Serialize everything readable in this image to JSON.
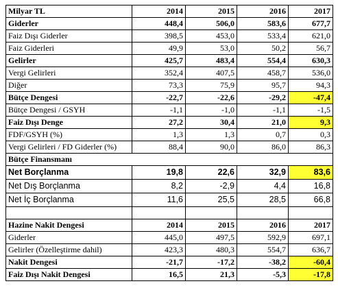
{
  "budget_table": {
    "header": [
      "Milyar TL",
      "2014",
      "2015",
      "2016",
      "2017"
    ],
    "rows": [
      [
        "Giderler",
        "448,4",
        "506,0",
        "583,6",
        "677,7"
      ],
      [
        "Faiz Dışı Giderler",
        "398,5",
        "453,0",
        "533,4",
        "621,0"
      ],
      [
        "Faiz Giderleri",
        "49,9",
        "53,0",
        "50,2",
        "56,7"
      ],
      [
        "Gelirler",
        "425,7",
        "483,4",
        "554,4",
        "630,3"
      ],
      [
        "Vergi Gelirleri",
        "352,4",
        "407,5",
        "458,7",
        "536,0"
      ],
      [
        "Diğer",
        "73,3",
        "75,9",
        "95,7",
        "94,3"
      ],
      [
        "Bütçe Dengesi",
        "-22,7",
        "-22,6",
        "-29,2",
        "-47,4"
      ],
      [
        "Bütçe Dengesi / GSYH",
        "-1,1",
        "-1,0",
        "-1,1",
        "-1,5"
      ],
      [
        "Faiz Dışı Denge",
        "27,2",
        "30,4",
        "21,0",
        "9,3"
      ],
      [
        "FDF/GSYH (%)",
        "1,3",
        "1,3",
        "0,7",
        "0,3"
      ],
      [
        "Vergi Gelirleri / FD Giderler (%)",
        "88,4",
        "90,0",
        "86,0",
        "86,3"
      ]
    ],
    "financing": {
      "title": "Bütçe Finansmanı",
      "rows": [
        [
          "Net Borçlanma",
          "19,8",
          "22,6",
          "32,9",
          "83,6"
        ],
        [
          "Net Dış Borçlanma",
          "8,2",
          "-2,9",
          "4,4",
          "16,8"
        ],
        [
          "Net İç Borçlanma",
          "11,6",
          "25,5",
          "28,5",
          "66,8"
        ]
      ]
    }
  },
  "cash_table": {
    "header": [
      "Hazine Nakit Dengesi",
      "2014",
      "2015",
      "2016",
      "2017"
    ],
    "rows": [
      [
        "Giderler",
        "445,0",
        "497,5",
        "592,9",
        "697,1"
      ],
      [
        "Gelirler (Özelleştirme dahil)",
        "423,3",
        "480,3",
        "554,7",
        "636,7"
      ],
      [
        "Nakit Dengesi",
        "-21,7",
        "-17,2",
        "-38,2",
        "-60,4"
      ],
      [
        "Faiz Dışı Nakit Dengesi",
        "16,5",
        "21,3",
        "-5,3",
        "-17,8"
      ]
    ]
  }
}
